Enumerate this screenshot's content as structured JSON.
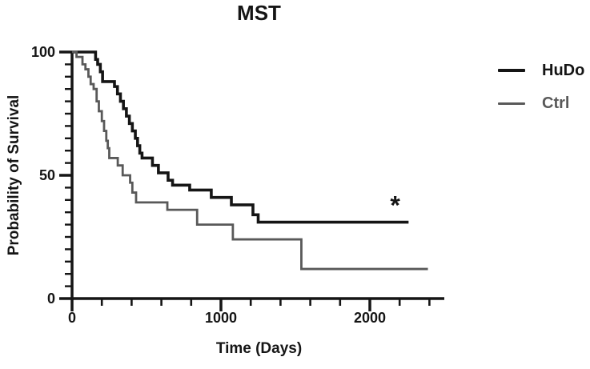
{
  "colors": {
    "hudo": "#151515",
    "ctrl": "#595959",
    "axis": "#151515",
    "background": "#ffffff"
  },
  "chart_data": {
    "type": "line",
    "subtype": "kaplan-meier-step",
    "title": "MST",
    "xlabel": "Time (Days)",
    "ylabel": "Probability of Survival",
    "xlim": [
      0,
      2500
    ],
    "ylim": [
      0,
      100
    ],
    "x_major_ticks": [
      0,
      1000,
      2000
    ],
    "x_minor_tick_interval": 200,
    "x_minor_tick_max": 2400,
    "y_major_ticks": [
      0,
      50,
      100
    ],
    "y_minor_tick_interval": 5,
    "grid": "off",
    "legend_position": "right-outside",
    "series": [
      {
        "name": "HuDo",
        "color": "#151515",
        "stroke_width": 3.6,
        "start": [
          0,
          100
        ],
        "end_time": 2260,
        "events": [
          [
            158,
            97
          ],
          [
            172,
            95
          ],
          [
            190,
            92
          ],
          [
            205,
            88
          ],
          [
            285,
            86
          ],
          [
            305,
            83
          ],
          [
            325,
            80
          ],
          [
            345,
            77
          ],
          [
            365,
            74
          ],
          [
            385,
            71
          ],
          [
            405,
            68
          ],
          [
            425,
            65
          ],
          [
            440,
            62
          ],
          [
            455,
            59
          ],
          [
            470,
            57
          ],
          [
            540,
            54
          ],
          [
            580,
            51
          ],
          [
            645,
            48
          ],
          [
            675,
            46
          ],
          [
            790,
            44
          ],
          [
            935,
            41
          ],
          [
            1070,
            38
          ],
          [
            1215,
            34
          ],
          [
            1250,
            31
          ]
        ]
      },
      {
        "name": "Ctrl",
        "color": "#595959",
        "stroke_width": 2.8,
        "start": [
          0,
          100
        ],
        "end_time": 2390,
        "events": [
          [
            30,
            98
          ],
          [
            70,
            95
          ],
          [
            90,
            93
          ],
          [
            110,
            90
          ],
          [
            125,
            87
          ],
          [
            145,
            85
          ],
          [
            165,
            80
          ],
          [
            180,
            76
          ],
          [
            200,
            72
          ],
          [
            215,
            68
          ],
          [
            230,
            64
          ],
          [
            240,
            61
          ],
          [
            250,
            57
          ],
          [
            307,
            54
          ],
          [
            340,
            50
          ],
          [
            390,
            47
          ],
          [
            405,
            43
          ],
          [
            430,
            39
          ],
          [
            640,
            36
          ],
          [
            840,
            30
          ],
          [
            1080,
            24
          ],
          [
            1540,
            12
          ]
        ]
      }
    ],
    "annotations": [
      {
        "text": "*",
        "x": 2170,
        "y": 37.5
      }
    ]
  }
}
